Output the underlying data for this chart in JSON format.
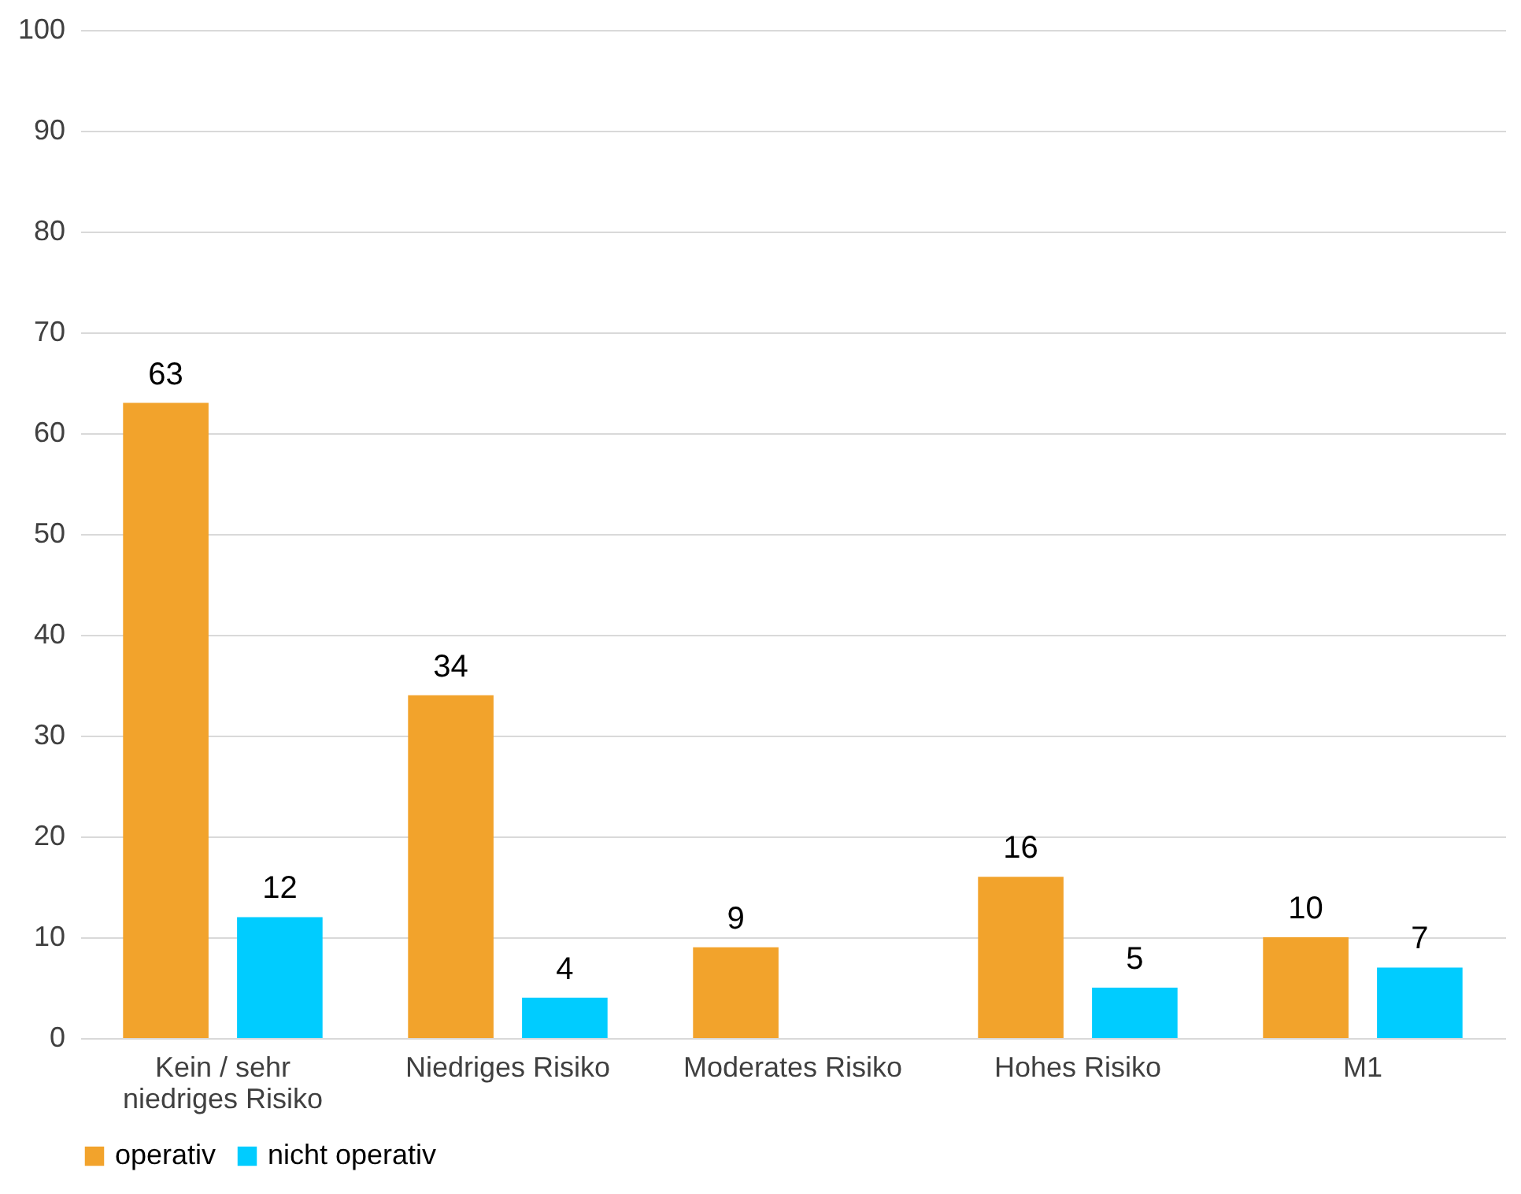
{
  "chart_data": {
    "type": "bar",
    "categories": [
      "Kein / sehr niedriges Risiko",
      "Niedriges Risiko",
      "Moderates Risiko",
      "Hohes Risiko",
      "M1"
    ],
    "series": [
      {
        "name": "operativ",
        "color": "#f2a32c",
        "values": [
          63,
          34,
          9,
          16,
          10
        ]
      },
      {
        "name": "nicht operativ",
        "color": "#00ccff",
        "values": [
          12,
          4,
          null,
          5,
          7
        ]
      }
    ],
    "ylim": [
      0,
      100
    ],
    "yticks": [
      0,
      10,
      20,
      30,
      40,
      50,
      60,
      70,
      80,
      90,
      100
    ],
    "grid": "y",
    "legend": "bottom",
    "data_labels": true
  }
}
